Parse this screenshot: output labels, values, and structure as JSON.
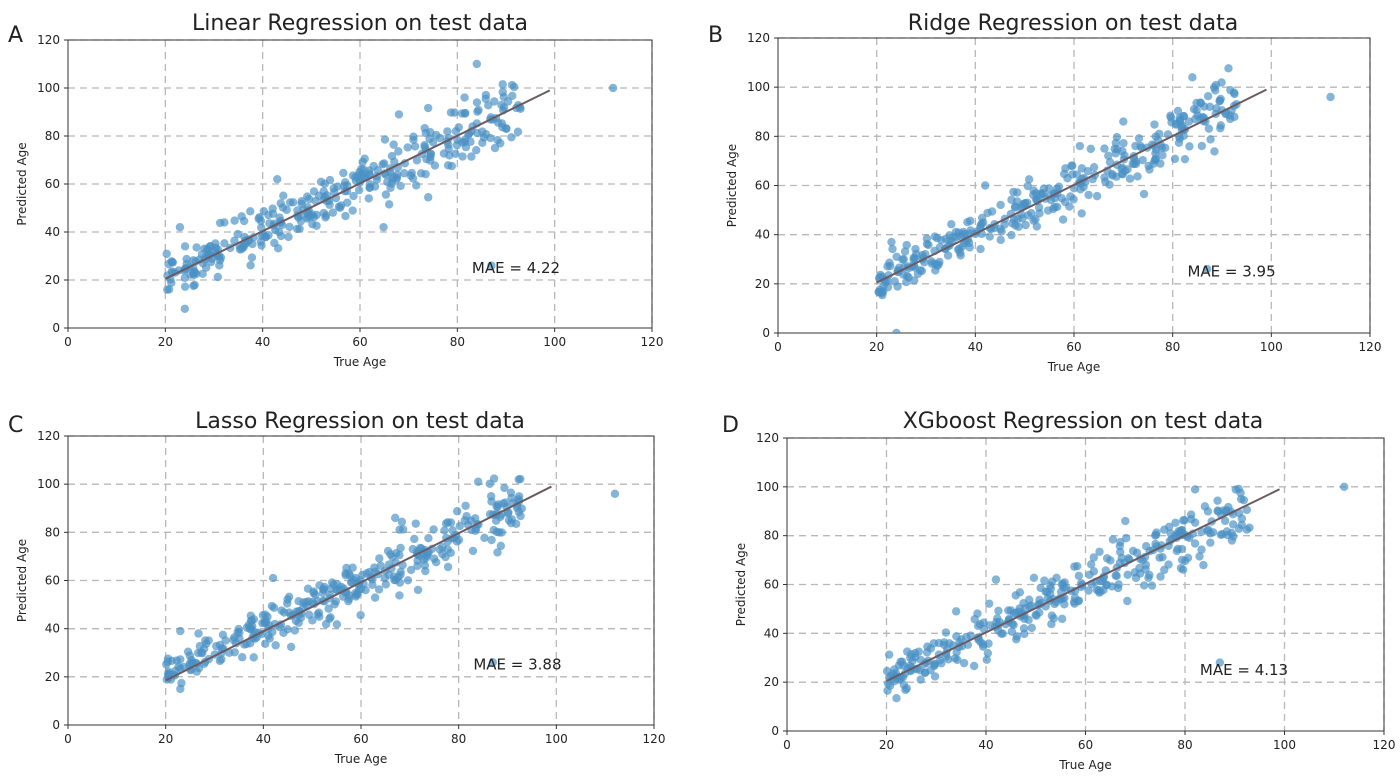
{
  "chart_data": [
    {
      "type": "scatter",
      "panel_letter": "A",
      "title": "Linear Regression on test data",
      "xlabel": "True Age",
      "ylabel": "Predicted Age",
      "xlim": [
        0,
        120
      ],
      "ylim": [
        0,
        120
      ],
      "xticks": [
        0,
        20,
        40,
        60,
        80,
        100,
        120
      ],
      "yticks": [
        0,
        20,
        40,
        60,
        80,
        100,
        120
      ],
      "grid": true,
      "annotation": "MAE = 4.22",
      "fit_line": {
        "x": [
          20,
          99
        ],
        "y": [
          20.5,
          99
        ]
      },
      "seed": 11,
      "noise_sd": 4.4,
      "extra_points": [
        {
          "x": 112,
          "y": 100
        },
        {
          "x": 87,
          "y": 26
        },
        {
          "x": 24,
          "y": 8
        },
        {
          "x": 84,
          "y": 110
        },
        {
          "x": 23,
          "y": 42
        },
        {
          "x": 43,
          "y": 62
        },
        {
          "x": 68,
          "y": 89
        }
      ],
      "point_color": "#4a90c4",
      "line_color": "#6b5b63"
    },
    {
      "type": "scatter",
      "panel_letter": "B",
      "title": "Ridge Regression on test data",
      "xlabel": "True Age",
      "ylabel": "Predicted Age",
      "xlim": [
        0,
        120
      ],
      "ylim": [
        0,
        120
      ],
      "xticks": [
        0,
        20,
        40,
        60,
        80,
        100,
        120
      ],
      "yticks": [
        0,
        20,
        40,
        60,
        80,
        100,
        120
      ],
      "grid": true,
      "annotation": "MAE = 3.95",
      "fit_line": {
        "x": [
          20,
          99
        ],
        "y": [
          20.5,
          99
        ]
      },
      "seed": 23,
      "noise_sd": 4.0,
      "extra_points": [
        {
          "x": 112,
          "y": 96
        },
        {
          "x": 87,
          "y": 26
        },
        {
          "x": 24,
          "y": 0
        },
        {
          "x": 84,
          "y": 104
        },
        {
          "x": 23,
          "y": 37
        },
        {
          "x": 42,
          "y": 60
        },
        {
          "x": 70,
          "y": 86
        }
      ],
      "point_color": "#4a90c4",
      "line_color": "#6b5b63"
    },
    {
      "type": "scatter",
      "panel_letter": "C",
      "title": "Lasso Regression on test data",
      "xlabel": "True Age",
      "ylabel": "Predicted Age",
      "xlim": [
        0,
        120
      ],
      "ylim": [
        0,
        120
      ],
      "xticks": [
        0,
        20,
        40,
        60,
        80,
        100,
        120
      ],
      "yticks": [
        0,
        20,
        40,
        60,
        80,
        100,
        120
      ],
      "grid": true,
      "annotation": "MAE = 3.88",
      "fit_line": {
        "x": [
          20,
          99
        ],
        "y": [
          18.5,
          99
        ]
      },
      "seed": 37,
      "noise_sd": 3.9,
      "extra_points": [
        {
          "x": 112,
          "y": 96
        },
        {
          "x": 87,
          "y": 26
        },
        {
          "x": 23,
          "y": 15
        },
        {
          "x": 84,
          "y": 101
        },
        {
          "x": 23,
          "y": 39
        },
        {
          "x": 42,
          "y": 61
        },
        {
          "x": 67,
          "y": 86
        }
      ],
      "point_color": "#4a90c4",
      "line_color": "#6b5b63"
    },
    {
      "type": "scatter",
      "panel_letter": "D",
      "title": "XGboost Regression on test data",
      "xlabel": "True Age",
      "ylabel": "Predicted Age",
      "xlim": [
        0,
        120
      ],
      "ylim": [
        0,
        120
      ],
      "xticks": [
        0,
        20,
        40,
        60,
        80,
        100,
        120
      ],
      "yticks": [
        0,
        20,
        40,
        60,
        80,
        100,
        120
      ],
      "grid": true,
      "annotation": "MAE = 4.13",
      "fit_line": {
        "x": [
          20,
          99
        ],
        "y": [
          20.5,
          99
        ]
      },
      "seed": 51,
      "noise_sd": 4.1,
      "extra_points": [
        {
          "x": 112,
          "y": 100
        },
        {
          "x": 87,
          "y": 28
        },
        {
          "x": 84,
          "y": 92
        },
        {
          "x": 42,
          "y": 62
        },
        {
          "x": 68,
          "y": 86
        },
        {
          "x": 34,
          "y": 49
        }
      ],
      "point_color": "#4a90c4",
      "line_color": "#6b5b63"
    }
  ]
}
